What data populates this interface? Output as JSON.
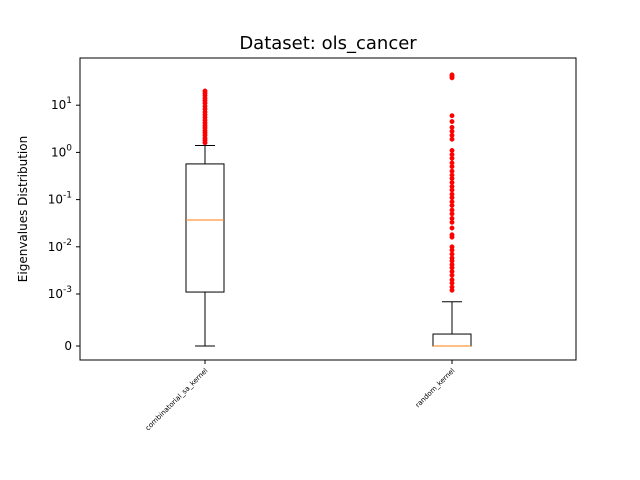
{
  "chart_data": {
    "type": "box",
    "title": "Dataset: ols_cancer",
    "xlabel": "",
    "ylabel": "Eigenvalues Distribution",
    "y_scale": "symlog",
    "y_ticks": [
      {
        "value": 0,
        "label": "0"
      },
      {
        "value": 0.001,
        "label": "10^-3"
      },
      {
        "value": 0.01,
        "label": "10^-2"
      },
      {
        "value": 0.1,
        "label": "10^-1"
      },
      {
        "value": 1,
        "label": "10^0"
      },
      {
        "value": 10,
        "label": "10^1"
      }
    ],
    "grid": false,
    "categories": [
      "combinatorial_sa_kernel",
      "random_kernel"
    ],
    "boxes": [
      {
        "name": "combinatorial_sa_kernel",
        "whisker_low": 0,
        "q1": 0.0011,
        "median": 0.037,
        "q3": 0.57,
        "whisker_high": 1.4,
        "outliers": [
          1.6,
          1.8,
          2.0,
          2.3,
          2.6,
          2.9,
          3.3,
          3.7,
          4.2,
          4.8,
          5.5,
          6.3,
          7.2,
          8.3,
          9.5,
          11,
          12.5,
          14,
          16,
          18,
          20
        ]
      },
      {
        "name": "random_kernel",
        "whisker_low": 0,
        "q1": 0,
        "median": 0,
        "q3": 0.00023,
        "whisker_high": 0.00085,
        "outliers": [
          0.0012,
          0.0014,
          0.0017,
          0.002,
          0.0025,
          0.003,
          0.0036,
          0.0042,
          0.005,
          0.0058,
          0.007,
          0.0085,
          0.01,
          0.016,
          0.018,
          0.025,
          0.033,
          0.04,
          0.05,
          0.06,
          0.075,
          0.09,
          0.11,
          0.13,
          0.16,
          0.19,
          0.23,
          0.28,
          0.33,
          0.4,
          0.5,
          0.6,
          0.75,
          0.9,
          1.1,
          1.9,
          2.3,
          2.8,
          3.4,
          4.5,
          6.0,
          38,
          41,
          44
        ]
      }
    ],
    "colors": {
      "box": "#000000",
      "median": "#ff7f0e",
      "outlier": "#ff0000"
    }
  }
}
